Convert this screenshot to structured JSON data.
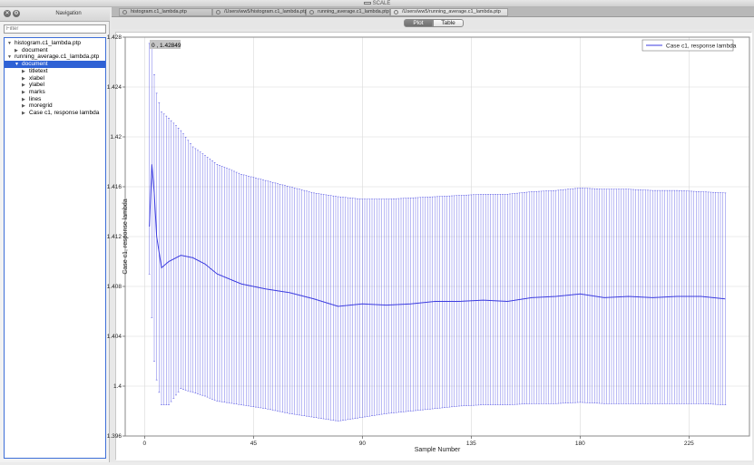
{
  "window": {
    "title": "SCALE"
  },
  "navigation": {
    "title": "Navigation",
    "filter_placeholder": "Filter",
    "tree": [
      {
        "label": "histogram.c1_lambda.ptp",
        "level": 0,
        "expanded": true,
        "selected": false,
        "leaf": false
      },
      {
        "label": "document",
        "level": 1,
        "expanded": false,
        "selected": false,
        "leaf": false
      },
      {
        "label": "running_average.c1_lambda.ptp",
        "level": 0,
        "expanded": true,
        "selected": false,
        "leaf": false
      },
      {
        "label": "document",
        "level": 1,
        "expanded": true,
        "selected": true,
        "leaf": false
      },
      {
        "label": "titletext",
        "level": 2,
        "expanded": false,
        "selected": false,
        "leaf": false
      },
      {
        "label": "xlabel",
        "level": 2,
        "expanded": false,
        "selected": false,
        "leaf": false
      },
      {
        "label": "ylabel",
        "level": 2,
        "expanded": false,
        "selected": false,
        "leaf": false
      },
      {
        "label": "marks",
        "level": 2,
        "expanded": false,
        "selected": false,
        "leaf": false
      },
      {
        "label": "lines",
        "level": 2,
        "expanded": false,
        "selected": false,
        "leaf": false
      },
      {
        "label": "moregrid",
        "level": 2,
        "expanded": false,
        "selected": false,
        "leaf": false
      },
      {
        "label": "Case c1, response lambda",
        "level": 2,
        "expanded": false,
        "selected": false,
        "leaf": false
      }
    ]
  },
  "file_tabs": [
    {
      "label": "histogram.c1_lambda.ptp",
      "active": false
    },
    {
      "label": "/Users/ww5/histogram.c1_lambda.ptp",
      "active": false
    },
    {
      "label": "running_average.c1_lambda.ptp",
      "active": false
    },
    {
      "label": "/Users/ww5/running_average.c1_lambda.ptp",
      "active": true
    }
  ],
  "view_toggle": {
    "plot_label": "Plot",
    "table_label": "Table",
    "active": "Plot"
  },
  "plot": {
    "coord_readout": "0 , 1.42849",
    "series_color": "#3b3be0"
  },
  "chart_data": {
    "type": "line",
    "xlabel": "Sample Number",
    "ylabel": "Case c1, response lambda",
    "xlim": [
      -8,
      250
    ],
    "ylim": [
      1.396,
      1.428
    ],
    "xticks": [
      0,
      45,
      90,
      135,
      180,
      225
    ],
    "yticks": [
      1.396,
      1.4,
      1.404,
      1.408,
      1.412,
      1.416,
      1.42,
      1.424,
      1.428
    ],
    "grid": true,
    "error_bars": true,
    "legend_position": "top-right",
    "series": [
      {
        "name": "Case c1, response lambda",
        "x": [
          2,
          3,
          4,
          5,
          7,
          10,
          15,
          20,
          25,
          30,
          40,
          50,
          60,
          70,
          80,
          90,
          100,
          110,
          120,
          130,
          140,
          150,
          160,
          170,
          180,
          190,
          200,
          210,
          220,
          230,
          240
        ],
        "y": [
          1.4128,
          1.4178,
          1.4155,
          1.412,
          1.4095,
          1.41,
          1.4105,
          1.4103,
          1.4098,
          1.409,
          1.4082,
          1.4078,
          1.4075,
          1.407,
          1.4064,
          1.4066,
          1.4065,
          1.4066,
          1.4068,
          1.4068,
          1.4069,
          1.4068,
          1.4071,
          1.4072,
          1.4074,
          1.4071,
          1.4072,
          1.4071,
          1.4072,
          1.4072,
          1.407
        ],
        "upper": [
          1.4275,
          1.4275,
          1.425,
          1.4235,
          1.422,
          1.4215,
          1.4205,
          1.4192,
          1.4185,
          1.4178,
          1.417,
          1.4165,
          1.416,
          1.4155,
          1.4152,
          1.415,
          1.415,
          1.4151,
          1.4152,
          1.4153,
          1.4154,
          1.4154,
          1.4156,
          1.4157,
          1.4159,
          1.4158,
          1.4158,
          1.4157,
          1.4157,
          1.4156,
          1.4155
        ],
        "lower": [
          1.409,
          1.4055,
          1.402,
          1.4005,
          1.3985,
          1.3985,
          1.3998,
          1.3995,
          1.3992,
          1.3988,
          1.3985,
          1.3982,
          1.3978,
          1.3975,
          1.3972,
          1.3975,
          1.3978,
          1.398,
          1.3982,
          1.3984,
          1.3985,
          1.3985,
          1.3986,
          1.3986,
          1.3987,
          1.3986,
          1.3986,
          1.3986,
          1.3986,
          1.3986,
          1.3985
        ]
      }
    ]
  }
}
